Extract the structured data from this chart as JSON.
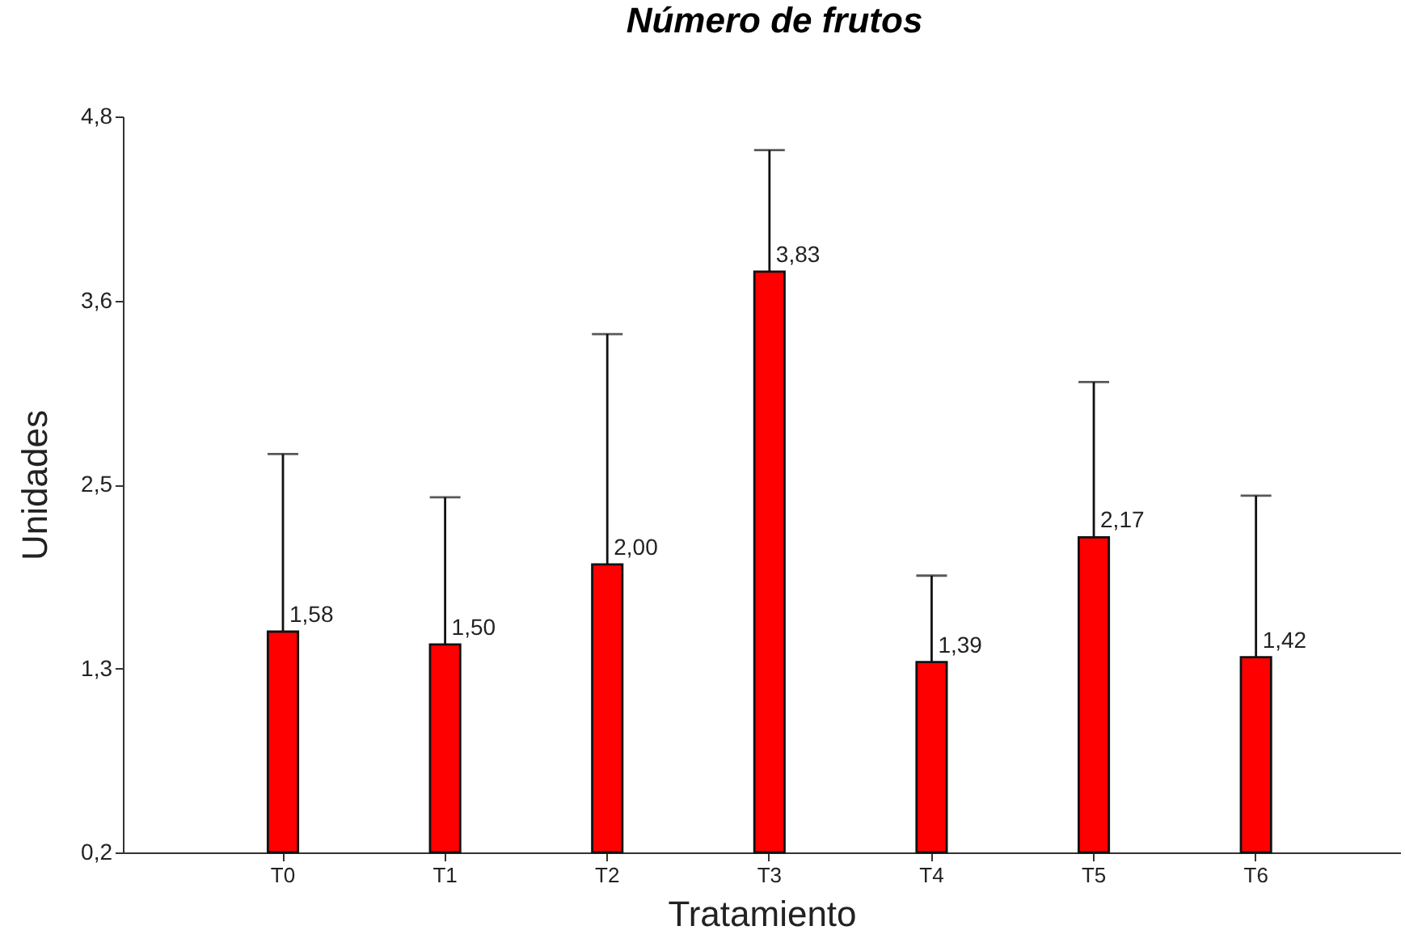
{
  "chart_data": {
    "type": "bar",
    "title": "Número de frutos",
    "xlabel": "Tratamiento",
    "ylabel": "Unidades",
    "categories": [
      "T0",
      "T1",
      "T2",
      "T3",
      "T4",
      "T5",
      "T6"
    ],
    "values": [
      1.58,
      1.5,
      2.0,
      3.83,
      1.39,
      2.17,
      1.42
    ],
    "value_labels": [
      "1,58",
      "1,50",
      "2,00",
      "3,83",
      "1,39",
      "2,17",
      "1,42"
    ],
    "errors": [
      [
        1.58,
        2.69
      ],
      [
        1.5,
        2.42
      ],
      [
        2.0,
        3.44
      ],
      [
        3.83,
        4.59
      ],
      [
        1.39,
        1.93
      ],
      [
        2.17,
        3.14
      ],
      [
        1.42,
        2.43
      ]
    ],
    "color": "#ff0000",
    "ylim": [
      0.2,
      4.8
    ],
    "yticks": [
      {
        "value": 0.2,
        "label": "0,2"
      },
      {
        "value": 1.35,
        "label": "1,3"
      },
      {
        "value": 2.5,
        "label": "2,5"
      },
      {
        "value": 3.65,
        "label": "3,6"
      },
      {
        "value": 4.8,
        "label": "4,8"
      }
    ]
  }
}
